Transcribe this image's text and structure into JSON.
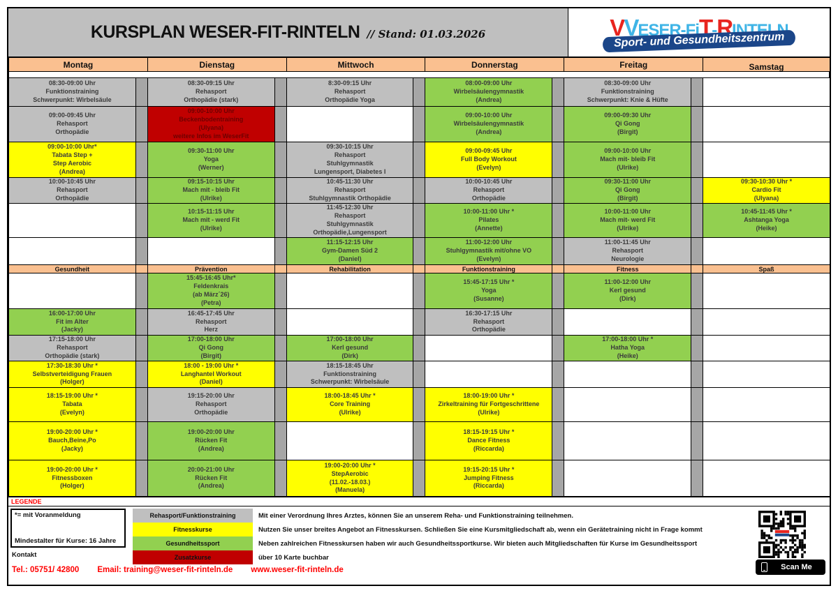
{
  "header": {
    "title": "KURSPLAN WESER-FIT-RINTELN",
    "stand": "// Stand: 01.03.2026",
    "logo": {
      "segments": [
        {
          "text": "V",
          "style": "red-big"
        },
        {
          "text": "V",
          "style": "blue-big"
        },
        {
          "text": "ESER-Fi",
          "style": "blue"
        },
        {
          "text": "T",
          "style": "red-big"
        },
        {
          "text": "-",
          "style": "blue"
        },
        {
          "text": "R",
          "style": "red-big"
        },
        {
          "text": "INTELN",
          "style": "blue"
        }
      ],
      "banner": "Sport- und Gesundheitszentrum"
    }
  },
  "days": [
    "Montag",
    "Dienstag",
    "Mittwoch",
    "Donnerstag",
    "Freitag",
    "Samstag"
  ],
  "categories": [
    "Gesundheit",
    "Prävention",
    "Rehabilitation",
    "Funktionstraining",
    "Fitness",
    "Spaß"
  ],
  "schedule": {
    "upper": [
      [
        {
          "type": "reha",
          "lines": [
            "08:30-09:00 Uhr",
            "Funktionstraining",
            "Schwerpunkt: Wirbelsäule"
          ]
        },
        {
          "type": "reha",
          "lines": [
            "08:30-09:15 Uhr",
            "Rehasport",
            "Orthopädie (stark)"
          ]
        },
        {
          "type": "reha",
          "lines": [
            "8:30-09:15 Uhr",
            "Rehasport",
            "Orthopädie Yoga"
          ]
        },
        {
          "type": "gesund",
          "lines": [
            "08:00-09:00 Uhr",
            "Wirbelsäulengymnastik",
            "(Andrea)"
          ]
        },
        {
          "type": "reha",
          "lines": [
            "08:30-09:00 Uhr",
            "Funktionstraining",
            "Schwerpunkt: Knie & Hüfte"
          ]
        },
        null
      ],
      [
        {
          "type": "reha",
          "lines": [
            "09:00-09:45 Uhr",
            "Rehasport",
            "Orthopädie"
          ]
        },
        {
          "type": "zusatz",
          "lines": [
            "09:00-10:00 Uhr",
            "Beckenbodentraining",
            "(Ulyana)",
            "weitere Infos im WeserFit"
          ]
        },
        null,
        {
          "type": "gesund",
          "lines": [
            "09:00-10:00 Uhr",
            "Wirbelsäulengymnastik",
            "(Andrea)"
          ]
        },
        {
          "type": "gesund",
          "lines": [
            "09:00-09:30 Uhr",
            "Qi Gong",
            "(Birgit)"
          ]
        },
        null
      ],
      [
        {
          "type": "fitness",
          "lines": [
            "09:00-10:00 Uhr*",
            "Tabata Step +",
            "Step Aerobic",
            "(Andrea)"
          ]
        },
        {
          "type": "gesund",
          "lines": [
            "09:30-11:00 Uhr",
            "Yoga",
            "(Werner)"
          ]
        },
        {
          "type": "reha",
          "lines": [
            "09:30-10:15 Uhr",
            "Rehasport",
            "Stuhlgymnastik",
            "Lungensport, Diabetes I"
          ]
        },
        {
          "type": "fitness",
          "lines": [
            "09:00-09:45 Uhr",
            "Full Body Workout",
            "(Evelyn)"
          ]
        },
        {
          "type": "gesund",
          "lines": [
            "09:00-10:00 Uhr",
            "Mach mit- bleib Fit",
            "(Ulrike)"
          ]
        },
        null
      ],
      [
        {
          "type": "reha",
          "lines": [
            "10:00-10:45 Uhr",
            "Rehasport",
            "Orthopädie"
          ]
        },
        {
          "type": "gesund",
          "lines": [
            "09:15-10:15 Uhr",
            "Mach mit - bleib Fit",
            "(Ulrike)"
          ]
        },
        {
          "type": "reha",
          "lines": [
            "10:45-11:30 Uhr",
            "Rehasport",
            "Stuhlgymnastik Orthopädie"
          ]
        },
        {
          "type": "reha",
          "lines": [
            "10:00-10:45 Uhr",
            "Rehasport",
            "Orthopädie"
          ]
        },
        {
          "type": "gesund",
          "lines": [
            "09:30-11:00 Uhr",
            "Qi Gong",
            "(Birgit)"
          ]
        },
        {
          "type": "fitness",
          "lines": [
            "09:30-10:30 Uhr *",
            "Cardio Fit",
            "(Ulyana)"
          ]
        }
      ],
      [
        null,
        {
          "type": "gesund",
          "lines": [
            "10:15-11:15 Uhr",
            "Mach mit - werd Fit",
            "(Ulrike)"
          ]
        },
        {
          "type": "reha",
          "lines": [
            "11:45-12:30 Uhr",
            "Rehasport",
            "Stuhlgymnastik",
            "Orthopädie,Lungensport"
          ]
        },
        {
          "type": "gesund",
          "lines": [
            "10:00-11:00 Uhr *",
            "Pilates",
            "(Annette)"
          ]
        },
        {
          "type": "gesund",
          "lines": [
            "10:00-11:00 Uhr",
            "Mach mit- werd Fit",
            "(Ulrike)"
          ]
        },
        {
          "type": "gesund",
          "lines": [
            "10:45-11:45 Uhr *",
            "Ashtanga Yoga",
            "(Heike)"
          ]
        }
      ],
      [
        null,
        null,
        {
          "type": "gesund",
          "lines": [
            "11:15-12:15 Uhr",
            "Gym-Damen Süd 2",
            "(Daniel)"
          ]
        },
        {
          "type": "gesund",
          "lines": [
            "11:00-12:00 Uhr",
            "Stuhlgymnastik mit/ohne VO",
            "(Evelyn)"
          ]
        },
        {
          "type": "reha",
          "lines": [
            "11:00-11:45 Uhr",
            "Rehasport",
            "Neurologie"
          ]
        },
        null
      ]
    ],
    "lower": [
      [
        null,
        {
          "type": "gesund",
          "lines": [
            "15:45-16:45 Uhr*",
            "Feldenkrais",
            "(ab März´26)",
            "(Petra)"
          ]
        },
        null,
        {
          "type": "gesund",
          "lines": [
            "15:45-17:15 Uhr *",
            "Yoga",
            "(Susanne)"
          ]
        },
        {
          "type": "gesund",
          "lines": [
            "11:00-12:00 Uhr",
            "Kerl gesund",
            "(Dirk)"
          ]
        },
        null
      ],
      [
        {
          "type": "gesund",
          "lines": [
            "16:00-17:00 Uhr",
            "Fit im Alter",
            "(Jacky)"
          ]
        },
        {
          "type": "reha",
          "lines": [
            "16:45-17:45 Uhr",
            "Rehasport",
            "Herz"
          ]
        },
        null,
        {
          "type": "reha",
          "lines": [
            "16:30-17:15 Uhr",
            "Rehasport",
            "Orthopädie"
          ]
        },
        null,
        null
      ],
      [
        {
          "type": "reha",
          "lines": [
            "17:15-18:00 Uhr",
            "Rehasport",
            "Orthopädie (stark)"
          ]
        },
        {
          "type": "gesund",
          "lines": [
            "17:00-18:00 Uhr",
            "Qi Gong",
            "(Birgit)"
          ]
        },
        {
          "type": "gesund",
          "lines": [
            "17:00-18:00 Uhr",
            "Kerl gesund",
            "(Dirk)"
          ]
        },
        null,
        {
          "type": "gesund",
          "lines": [
            "17:00-18:00 Uhr *",
            "Hatha Yoga",
            "(Heike)"
          ]
        },
        null
      ],
      [
        {
          "type": "fitness",
          "lines": [
            "17:30-18:30 Uhr *",
            "Selbstverteidigung Frauen",
            "(Holger)"
          ]
        },
        {
          "type": "fitness",
          "lines": [
            "18:00 - 19:00 Uhr *",
            "Langhantel Workout",
            "(Daniel)"
          ]
        },
        {
          "type": "reha",
          "lines": [
            "18:15-18:45 Uhr",
            "Funktionstraining",
            "Schwerpunkt: Wirbelsäule"
          ]
        },
        null,
        null,
        null
      ],
      [
        {
          "type": "fitness",
          "lines": [
            "18:15-19:00 Uhr *",
            "Tabata",
            "(Evelyn)"
          ]
        },
        {
          "type": "reha",
          "lines": [
            "19:15-20:00 Uhr",
            "Rehasport",
            "Orthopädie"
          ]
        },
        {
          "type": "fitness",
          "lines": [
            "18:00-18:45 Uhr *",
            "Core Training",
            "(Ulrike)"
          ]
        },
        {
          "type": "fitness",
          "lines": [
            "18:00-19:00 Uhr *",
            "Zirkeltraining für Fortgeschrittene",
            "(Ulrike)"
          ]
        },
        null,
        null
      ],
      [
        {
          "type": "fitness",
          "lines": [
            "19:00-20:00 Uhr *",
            "Bauch,Beine,Po",
            "(Jacky)"
          ]
        },
        {
          "type": "gesund",
          "lines": [
            "19:00-20:00 Uhr",
            "Rücken Fit",
            "(Andrea)"
          ]
        },
        null,
        {
          "type": "fitness",
          "lines": [
            "18:15-19:15 Uhr *",
            "Dance Fitness",
            "(Riccarda)"
          ]
        },
        null,
        null
      ],
      [
        {
          "type": "fitness",
          "lines": [
            "19:00-20:00 Uhr *",
            "Fitnessboxen",
            "(Holger)"
          ]
        },
        {
          "type": "gesund",
          "lines": [
            "20:00-21:00 Uhr",
            "Rücken Fit",
            "(Andrea)"
          ]
        },
        {
          "type": "fitness",
          "lines": [
            "19:00-20:00 Uhr *",
            "StepAerobic",
            "(11.02.-18.03.)",
            "(Manuela)"
          ]
        },
        {
          "type": "fitness",
          "lines": [
            "19:15-20:15 Uhr *",
            "Jumping Fitness",
            "(Riccarda)"
          ]
        },
        null,
        null
      ]
    ]
  },
  "legend": {
    "label": "LEGENDE",
    "note_asterisk": "*= mit Voranmeldung",
    "note_age": "Mindestalter für Kurse: 16 Jahre",
    "kontakt_label": "Kontakt",
    "contact_tel": "Tel.: 05751/ 42800",
    "contact_email": "Email: training@weser-fit-rinteln.de",
    "contact_web": "www.weser-fit-rinteln.de",
    "swatches": [
      {
        "type": "reha",
        "label": "Rehasport/Funktionstraining",
        "desc": "Mit einer Verordnung Ihres Arztes, können Sie an unserem Reha- und Funktionstraining teilnehmen."
      },
      {
        "type": "fitness",
        "label": "Fitnesskurse",
        "desc": "Nutzen Sie unser breites Angebot an Fitnesskursen. Schließen Sie eine Kursmitgliedschaft ab, wenn ein Gerätetraining nicht in Frage kommt"
      },
      {
        "type": "gesund",
        "label": "Gesundheitssport",
        "desc": "Neben zahlreichen Fitnesskursen haben wir auch Gesundheitssportkurse. Wir bieten auch Mitgliedschaften für Kurse im Gesundheitssport"
      },
      {
        "type": "zusatz",
        "label": "Zusatzkurse",
        "desc": "über 10 Karte buchbar"
      }
    ],
    "qr_scan_label": "Scan Me"
  },
  "colors": {
    "reha": "#BFBFBF",
    "fitness": "#FFFF00",
    "gesund": "#92D050",
    "zusatz": "#C00000",
    "zusatz_text": "#6E0000",
    "band": "#FAC090",
    "spacer": "#A6A6A6",
    "title_band": "#BFBFBF",
    "logo_blue": "#3FB4E6",
    "logo_red": "#E8251F",
    "banner_blue": "#1B4689",
    "contact_red": "#FF0000"
  }
}
